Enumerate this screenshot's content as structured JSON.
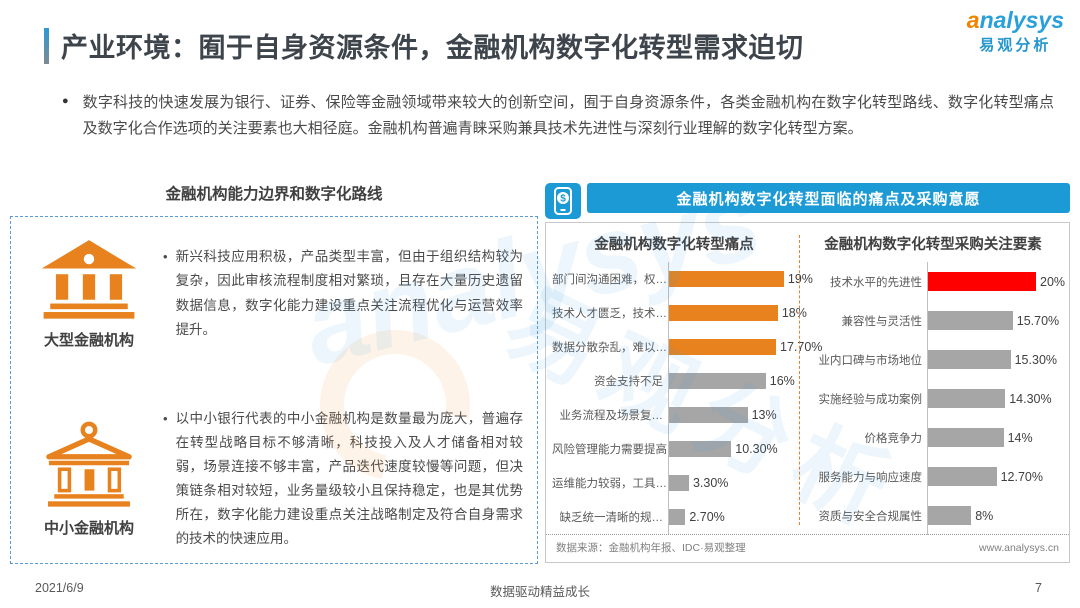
{
  "page": {
    "title": "产业环境：囿于自身资源条件，金融机构数字化转型需求迫切",
    "intro": "数字科技的快速发展为银行、证券、保险等金融领域带来较大的创新空间，囿于自身资源条件，各类金融机构在数字化转型路线、数字化转型痛点及数字化合作选项的关注要素也大相径庭。金融机构普遍青睐采购兼具技术先进性与深刻行业理解的数字化转型方案。",
    "footer": {
      "date": "2021/6/9",
      "slogan": "数据驱动精益成长",
      "page_number": "7"
    }
  },
  "logo": {
    "brand": "analysys",
    "brand_cn": "易观分析"
  },
  "watermark": {
    "latin": "analysys",
    "cn": "易观分析"
  },
  "left_section": {
    "heading": "金融机构能力边界和数字化路线",
    "bullet_marker": "•",
    "items": [
      {
        "label": "大型金融机构",
        "icon": "bank-solid-icon",
        "text": "新兴科技应用积极，产品类型丰富，但由于组织结构较为复杂，因此审核流程制度相对繁琐，且存在大量历史遗留数据信息，数字化能力建设重点关注流程优化与运营效率提升。"
      },
      {
        "label": "中小金融机构",
        "icon": "bank-outline-icon",
        "text": "以中小银行代表的中小金融机构是数量最为庞大，普遍存在转型战略目标不够清晰，科技投入及人才储备相对较弱，场景连接不够丰富，产品迭代速度较慢等问题，但决策链条相对较短，业务量级较小且保持稳定，也是其优势所在，数字化能力建设重点关注战略制定及符合自身需求的技术的快速应用。"
      }
    ]
  },
  "right_section": {
    "banner": "金融机构数字化转型面临的痛点及采购意愿",
    "banner_icon": "mobile-payment-icon",
    "source": "数据来源：金融机构年报、IDC·易观整理",
    "website": "www.analysys.cn"
  },
  "intro_marker": "●",
  "colors": {
    "accent_blue": "#1b9ad6",
    "orange": "#e8821e",
    "gray_bar": "#a6a6a6",
    "red": "#fe0000",
    "dashed_border_blue": "#5b9bd5",
    "divider_orange": "#ed7d31"
  },
  "chart_data": [
    {
      "type": "bar",
      "orientation": "horizontal",
      "title": "金融机构数字化转型痛点",
      "categories": [
        "部门间沟通困难，权…",
        "技术人才匮乏，技术…",
        "数据分散杂乱，难以…",
        "资金支持不足",
        "业务流程及场景复…",
        "风险管理能力需要提高",
        "运维能力较弱，工具…",
        "缺乏统一清晰的规…"
      ],
      "values": [
        19,
        18,
        17.7,
        16,
        13,
        10.3,
        3.3,
        2.7
      ],
      "value_labels": [
        "19%",
        "18%",
        "17.70%",
        "16%",
        "13%",
        "10.30%",
        "3.30%",
        "2.70%"
      ],
      "bar_colors": [
        "#e8821e",
        "#e8821e",
        "#e8821e",
        "#a6a6a6",
        "#a6a6a6",
        "#a6a6a6",
        "#a6a6a6",
        "#a6a6a6"
      ],
      "xlim": [
        0,
        21
      ],
      "unit": "%",
      "grid": false,
      "legend": false
    },
    {
      "type": "bar",
      "orientation": "horizontal",
      "title": "金融机构数字化转型采购关注要素",
      "categories": [
        "技术水平的先进性",
        "兼容性与灵活性",
        "业内口碑与市场地位",
        "实施经验与成功案例",
        "价格竞争力",
        "服务能力与响应速度",
        "资质与安全合规属性"
      ],
      "values": [
        20,
        15.7,
        15.3,
        14.3,
        14,
        12.7,
        8
      ],
      "value_labels": [
        "20%",
        "15.70%",
        "15.30%",
        "14.30%",
        "14%",
        "12.70%",
        "8%"
      ],
      "bar_colors": [
        "#fe0000",
        "#a6a6a6",
        "#a6a6a6",
        "#a6a6a6",
        "#a6a6a6",
        "#a6a6a6",
        "#a6a6a6"
      ],
      "xlim": [
        0,
        25
      ],
      "unit": "%",
      "grid": false,
      "legend": false
    }
  ]
}
